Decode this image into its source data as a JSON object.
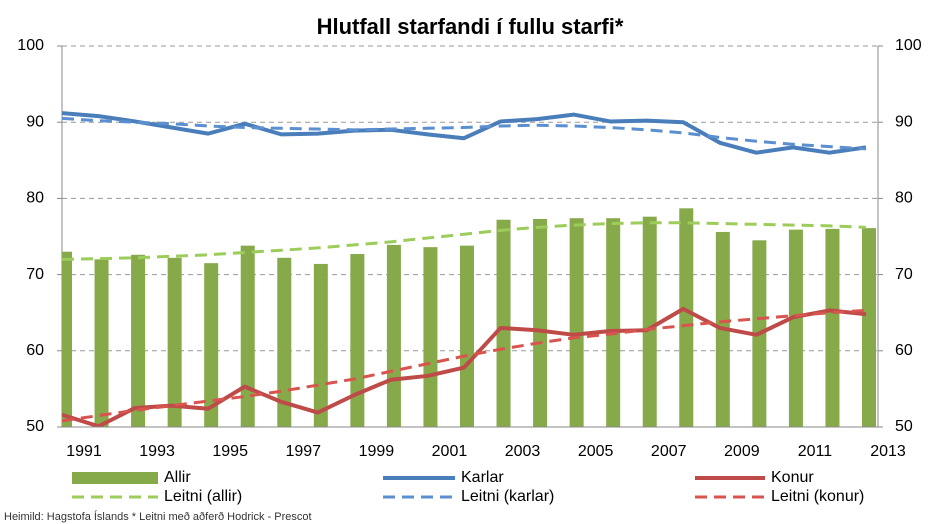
{
  "chart_data": {
    "type": "combo",
    "title": "Hlutfall starfandi í fullu starfi*",
    "note": "Heimild: Hagstofa Íslands * Leitni með aðferð Hodrick - Prescot",
    "categories": [
      "1991",
      null,
      "1993",
      null,
      "1995",
      null,
      "1997",
      null,
      "1999",
      null,
      "2001",
      null,
      "2003",
      null,
      "2005",
      null,
      "2007",
      null,
      "2009",
      null,
      "2011",
      null,
      "2013"
    ],
    "ylim": [
      50,
      100
    ],
    "yticks": [
      50,
      60,
      70,
      80,
      90,
      100
    ],
    "y2lim": [
      50,
      100
    ],
    "y2ticks": [
      50,
      60,
      70,
      80,
      90,
      100
    ],
    "grid": true,
    "series": [
      {
        "name": "Allir",
        "type": "bar",
        "color": "#86a94a",
        "values": [
          73.0,
          72.0,
          72.6,
          72.2,
          71.5,
          73.8,
          72.2,
          71.4,
          72.7,
          73.9,
          73.6,
          73.8,
          77.2,
          77.3,
          77.4,
          77.4,
          77.6,
          78.7,
          75.6,
          74.5,
          75.9,
          76.0,
          76.1
        ]
      },
      {
        "name": "Karlar",
        "type": "line",
        "color": "#4a7ebb",
        "values": [
          91.2,
          90.8,
          90.1,
          89.3,
          88.5,
          89.8,
          88.4,
          88.5,
          88.9,
          89.0,
          88.4,
          87.9,
          90.1,
          90.4,
          91.0,
          90.1,
          90.2,
          90.0,
          87.3,
          86.0,
          86.7,
          86.0,
          86.7
        ]
      },
      {
        "name": "Konur",
        "type": "line",
        "color": "#be4b48",
        "values": [
          51.6,
          50.1,
          52.5,
          52.8,
          52.4,
          55.3,
          53.3,
          51.9,
          54.2,
          56.2,
          56.7,
          57.8,
          63.0,
          62.7,
          62.1,
          62.6,
          62.7,
          65.5,
          63.0,
          62.1,
          64.4,
          65.3,
          64.8
        ]
      },
      {
        "name": "Leitni (allir)",
        "type": "line",
        "dashed": true,
        "color": "#9ccc5a",
        "values": [
          72.0,
          72.1,
          72.2,
          72.4,
          72.6,
          72.9,
          73.2,
          73.5,
          73.9,
          74.3,
          74.8,
          75.3,
          75.8,
          76.2,
          76.5,
          76.7,
          76.8,
          76.8,
          76.7,
          76.6,
          76.5,
          76.4,
          76.2
        ]
      },
      {
        "name": "Leitni (karlar)",
        "type": "line",
        "dashed": true,
        "color": "#5b8fd0",
        "values": [
          90.5,
          90.2,
          90.0,
          89.8,
          89.5,
          89.3,
          89.2,
          89.1,
          89.0,
          89.1,
          89.2,
          89.3,
          89.5,
          89.6,
          89.5,
          89.3,
          89.0,
          88.6,
          88.0,
          87.5,
          87.1,
          86.8,
          86.5
        ]
      },
      {
        "name": "Leitni (konur)",
        "type": "line",
        "dashed": true,
        "color": "#d9534f",
        "values": [
          50.8,
          51.5,
          52.2,
          52.8,
          53.4,
          54.0,
          54.7,
          55.5,
          56.3,
          57.3,
          58.3,
          59.3,
          60.2,
          61.0,
          61.7,
          62.2,
          62.8,
          63.3,
          63.8,
          64.2,
          64.6,
          65.0,
          65.3
        ]
      }
    ]
  }
}
